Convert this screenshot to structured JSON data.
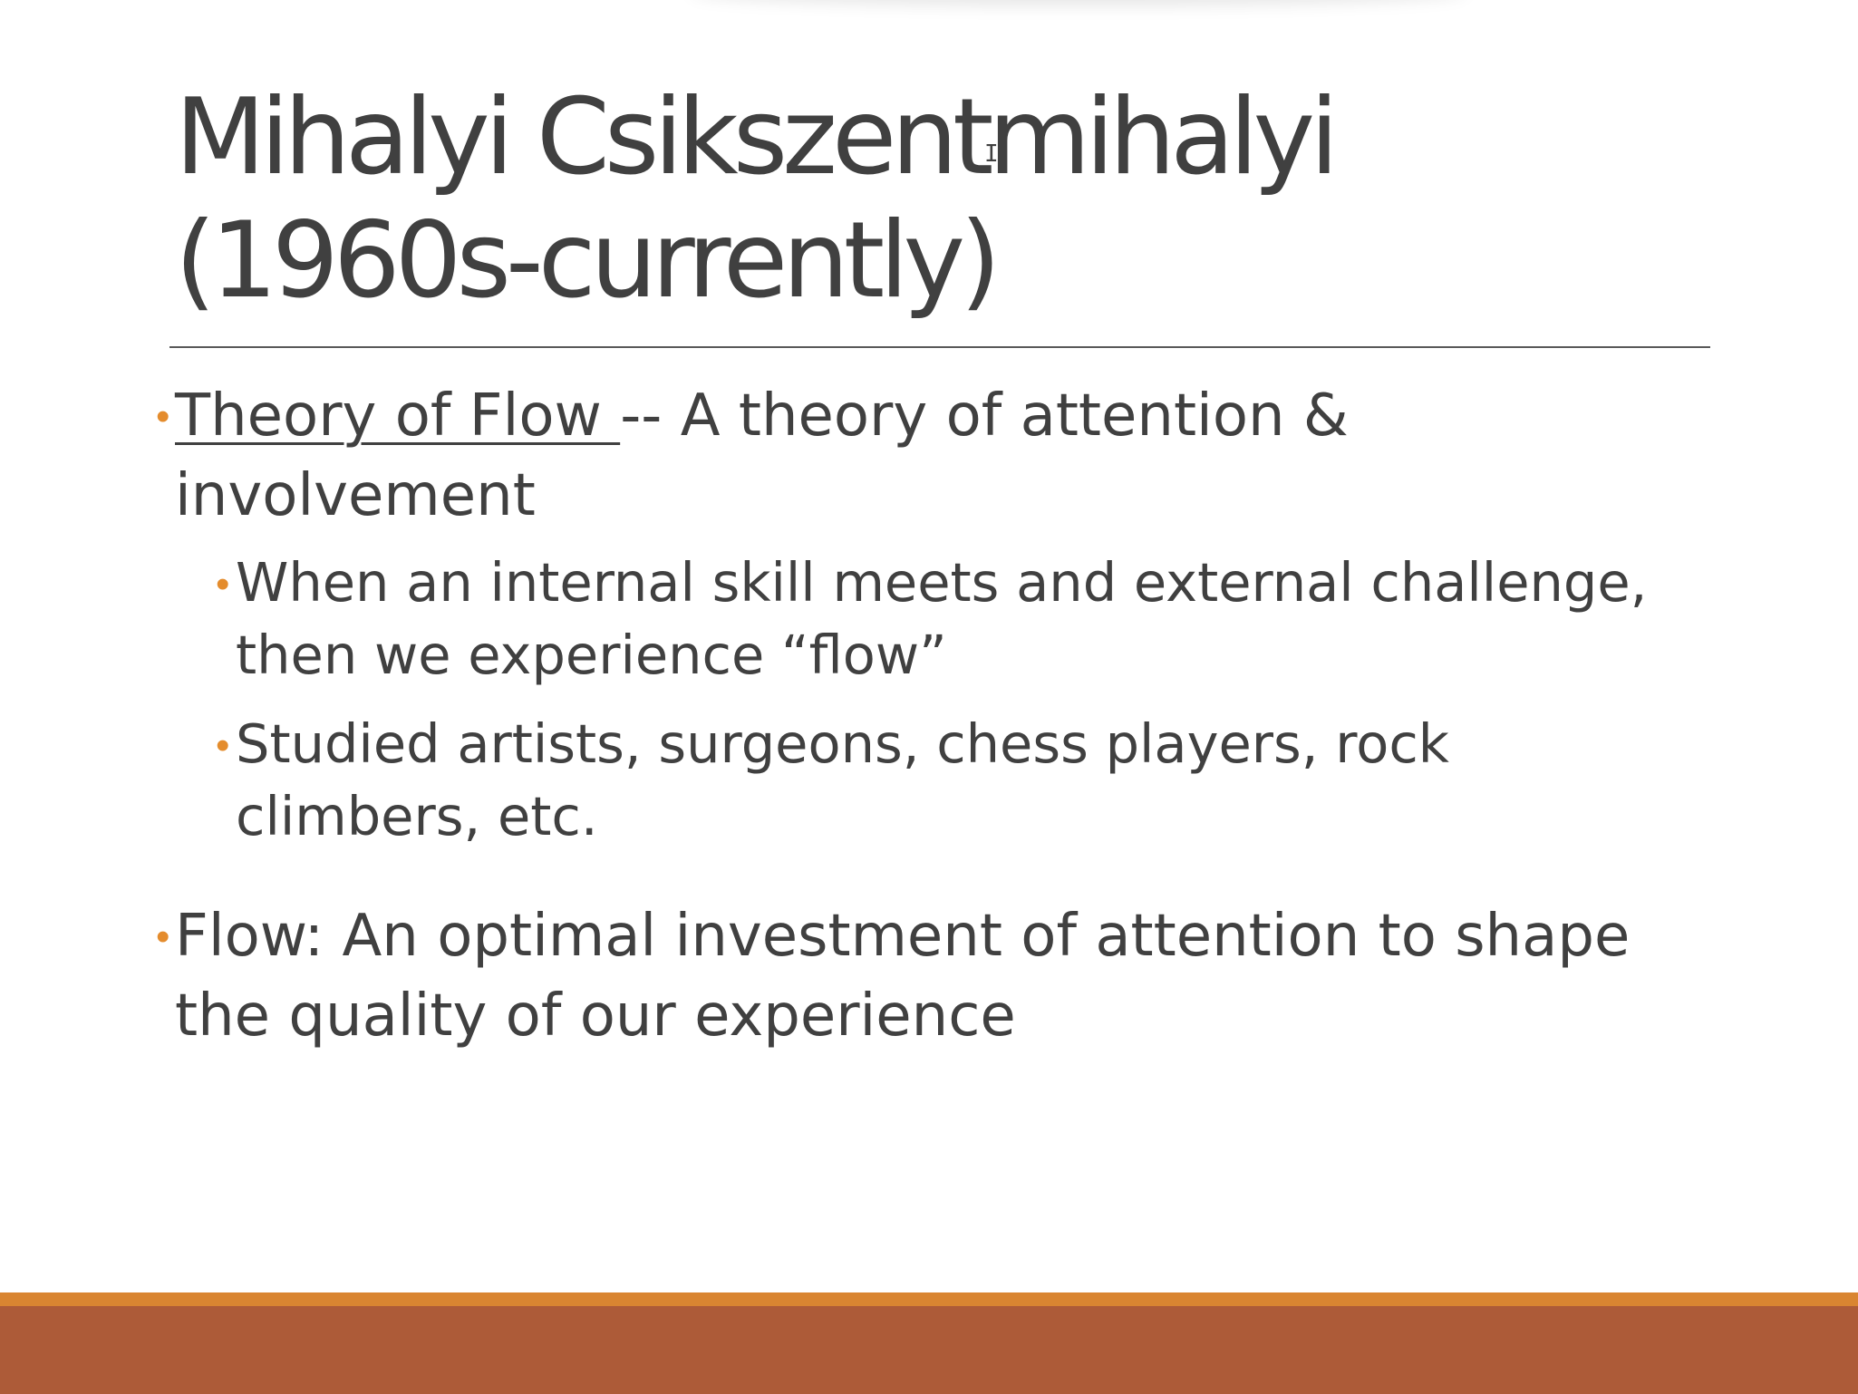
{
  "slide": {
    "title": {
      "line1": "Mihalyi Csikszentmihalyi",
      "line2": "(1960s-currently)"
    },
    "bullets": [
      {
        "underlined_text": "Theory of Flow ",
        "text": "-- A theory of attention &",
        "continuation": "involvement"
      },
      {
        "line1": "When an internal skill meets and external challenge,",
        "line2": "then we experience “flow”"
      },
      {
        "line1": "Studied artists, surgeons, chess players, rock",
        "line2": "climbers, etc."
      },
      {
        "line1": "Flow:  An optimal investment of attention to shape",
        "line2": "the quality of our experience"
      }
    ]
  },
  "icons": {
    "bullet": "•",
    "text_cursor": "I"
  },
  "colors": {
    "text": "#404040",
    "bullet_accent": "#e48c2d",
    "footer_orange": "#d98531",
    "footer_rust": "#ad5b38",
    "background": "#ffffff"
  }
}
